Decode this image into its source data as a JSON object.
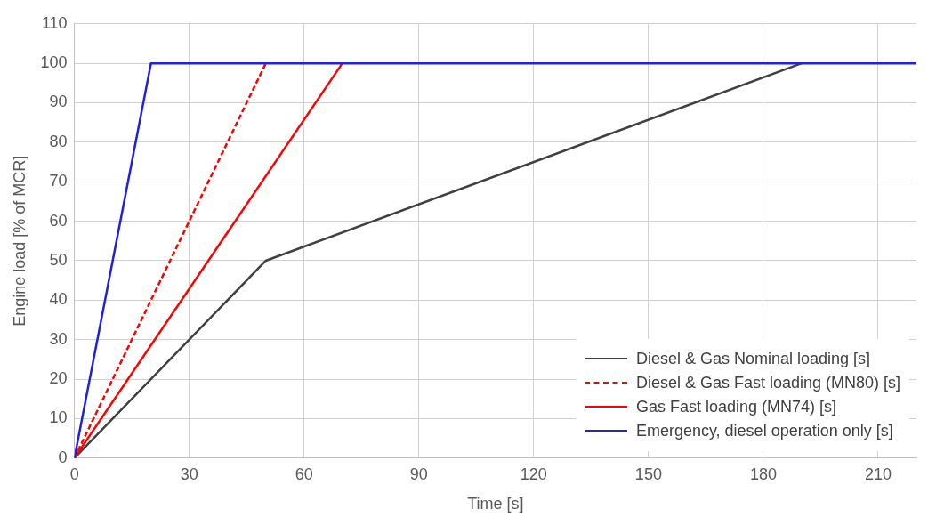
{
  "chart_data": {
    "type": "line",
    "xlabel": "Time [s]",
    "ylabel": "Engine load [% of MCR]",
    "xlim": [
      0,
      220
    ],
    "xticks": [
      0,
      30,
      60,
      90,
      120,
      150,
      180,
      210
    ],
    "ylim": [
      0,
      110
    ],
    "yticks": [
      0,
      10,
      20,
      30,
      40,
      50,
      60,
      70,
      80,
      90,
      100,
      110
    ],
    "grid": true,
    "legend": "bottom right",
    "marker": "none",
    "series": [
      {
        "name": "Diesel & Gas Nominal loading [s]",
        "color": "#404040",
        "x": [
          0,
          50,
          190
        ],
        "values": [
          0,
          50,
          100
        ],
        "line_style": "solid"
      },
      {
        "name": "Diesel & Gas Fast loading (MN80) [s]",
        "color": "#ff0000",
        "x": [
          0,
          50
        ],
        "values": [
          0,
          100
        ],
        "line_style": "dashed"
      },
      {
        "name": "Gas Fast loading (MN74) [s]",
        "color": "#ff0000",
        "x": [
          0,
          70
        ],
        "values": [
          0,
          100
        ],
        "line_style": "solid"
      },
      {
        "name": "Emergency, diesel operation only [s]",
        "color": "#2020e0",
        "x": [
          0,
          20,
          220
        ],
        "values": [
          0,
          100,
          100
        ],
        "line_style": "solid"
      }
    ]
  }
}
